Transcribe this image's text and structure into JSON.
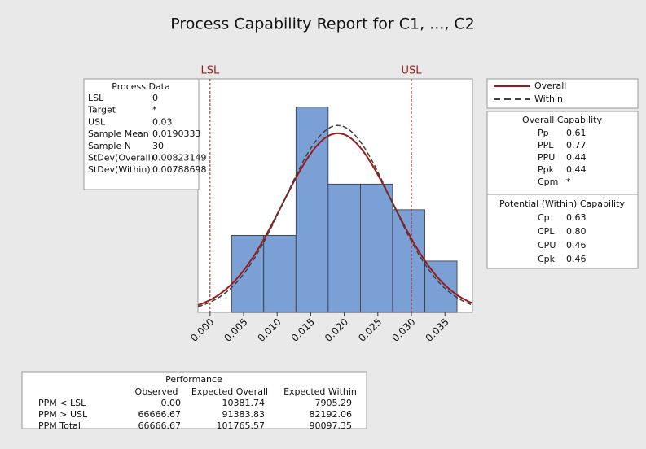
{
  "chart_data": {
    "type": "histogram",
    "title": "Process Capability Report for C1, ..., C2",
    "bins": [
      0.0032,
      0.008,
      0.0128,
      0.0176,
      0.0224,
      0.0272,
      0.032,
      0.0368
    ],
    "values": [
      3,
      3,
      8,
      5,
      5,
      4,
      2
    ],
    "color": "#7ba0d6",
    "xlim": [
      -0.0018,
      0.0391
    ],
    "ylim": [
      0,
      9.1
    ],
    "xticks": [
      {
        "value": 0,
        "label": "0.000"
      },
      0.005,
      {
        "value": 0.01,
        "label": "0.010"
      },
      0.015,
      {
        "value": 0.02,
        "label": "0.020"
      },
      0.025,
      {
        "value": 0.03,
        "label": "0.030"
      },
      0.035
    ],
    "spec_lines": [
      {
        "label": "LSL",
        "value": 0
      },
      {
        "label": "USL",
        "value": 0.03
      }
    ],
    "series": [
      {
        "name": "Overall",
        "color": "#9b1b1b",
        "dash": false
      },
      {
        "name": "Within",
        "color": "#404040",
        "dash": true
      }
    ]
  },
  "process_data": {
    "title": "Process Data",
    "rows": [
      [
        "LSL",
        "0"
      ],
      [
        "Target",
        "*"
      ],
      [
        "USL",
        "0.03"
      ],
      [
        "Sample Mean",
        "0.0190333"
      ],
      [
        "Sample N",
        "30"
      ],
      [
        "StDev(Overall)",
        "0.00823149"
      ],
      [
        "StDev(Within)",
        "0.00788698"
      ]
    ]
  },
  "overall_capability": {
    "title": "Overall Capability",
    "rows": [
      [
        "Pp",
        "0.61"
      ],
      [
        "PPL",
        "0.77"
      ],
      [
        "PPU",
        "0.44"
      ],
      [
        "Ppk",
        "0.44"
      ],
      [
        "Cpm",
        "*"
      ]
    ]
  },
  "within_capability": {
    "title": "Potential (Within) Capability",
    "rows": [
      [
        "Cp",
        "0.63"
      ],
      [
        "CPL",
        "0.80"
      ],
      [
        "CPU",
        "0.46"
      ],
      [
        "Cpk",
        "0.46"
      ]
    ]
  },
  "performance": {
    "title": "Performance",
    "columns": [
      "Observed",
      "Expected Overall",
      "Expected Within"
    ],
    "rows": [
      [
        "PPM < LSL",
        "0.00",
        "10381.74",
        "7905.29"
      ],
      [
        "PPM > USL",
        "66666.67",
        "91383.83",
        "82192.06"
      ],
      [
        "PPM Total",
        "66666.67",
        "101765.57",
        "90097.35"
      ]
    ]
  }
}
